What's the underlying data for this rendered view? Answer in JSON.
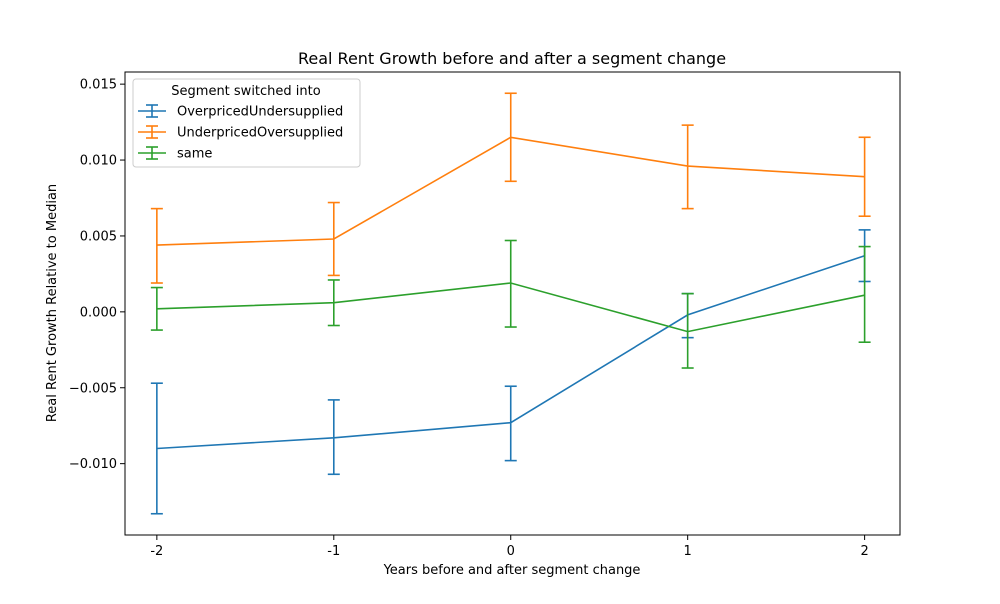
{
  "chart_data": {
    "type": "line",
    "title": "Real Rent Growth before and after a segment change",
    "xlabel": "Years before and after segment change",
    "ylabel": "Real Rent Growth Relative to Median",
    "x": [
      -2,
      -1,
      0,
      1,
      2
    ],
    "x_tick_labels": [
      "-2",
      "-1",
      "0",
      "1",
      "2"
    ],
    "xlim": [
      -2.18,
      2.2
    ],
    "ylim": [
      -0.0147,
      0.0158
    ],
    "y_ticks": [
      -0.01,
      -0.005,
      0.0,
      0.005,
      0.01,
      0.015
    ],
    "y_tick_labels": [
      "−0.010",
      "−0.005",
      "0.000",
      "0.005",
      "0.010",
      "0.015"
    ],
    "grid": false,
    "legend": {
      "title": "Segment switched into",
      "placement": "top-left"
    },
    "series": [
      {
        "name": "OverpricedUndersupplied",
        "color": "#1f77b4",
        "y": [
          -0.009,
          -0.0083,
          -0.0073,
          -0.0002,
          0.0037
        ],
        "err_low": [
          -0.0133,
          -0.0107,
          -0.0098,
          -0.0017,
          0.002
        ],
        "err_high": [
          -0.0047,
          -0.0058,
          -0.0049,
          0.0012,
          0.0054
        ]
      },
      {
        "name": "UnderpricedOversupplied",
        "color": "#ff7f0e",
        "y": [
          0.0044,
          0.0048,
          0.0115,
          0.0096,
          0.0089
        ],
        "err_low": [
          0.0019,
          0.0024,
          0.0086,
          0.0068,
          0.0063
        ],
        "err_high": [
          0.0068,
          0.0072,
          0.0144,
          0.0123,
          0.0115
        ]
      },
      {
        "name": "same",
        "color": "#2ca02c",
        "y": [
          0.0002,
          0.0006,
          0.0019,
          -0.0013,
          0.0011
        ],
        "err_low": [
          -0.0012,
          -0.0009,
          -0.001,
          -0.0037,
          -0.002
        ],
        "err_high": [
          0.0016,
          0.0021,
          0.0047,
          0.0012,
          0.0043
        ]
      }
    ]
  }
}
